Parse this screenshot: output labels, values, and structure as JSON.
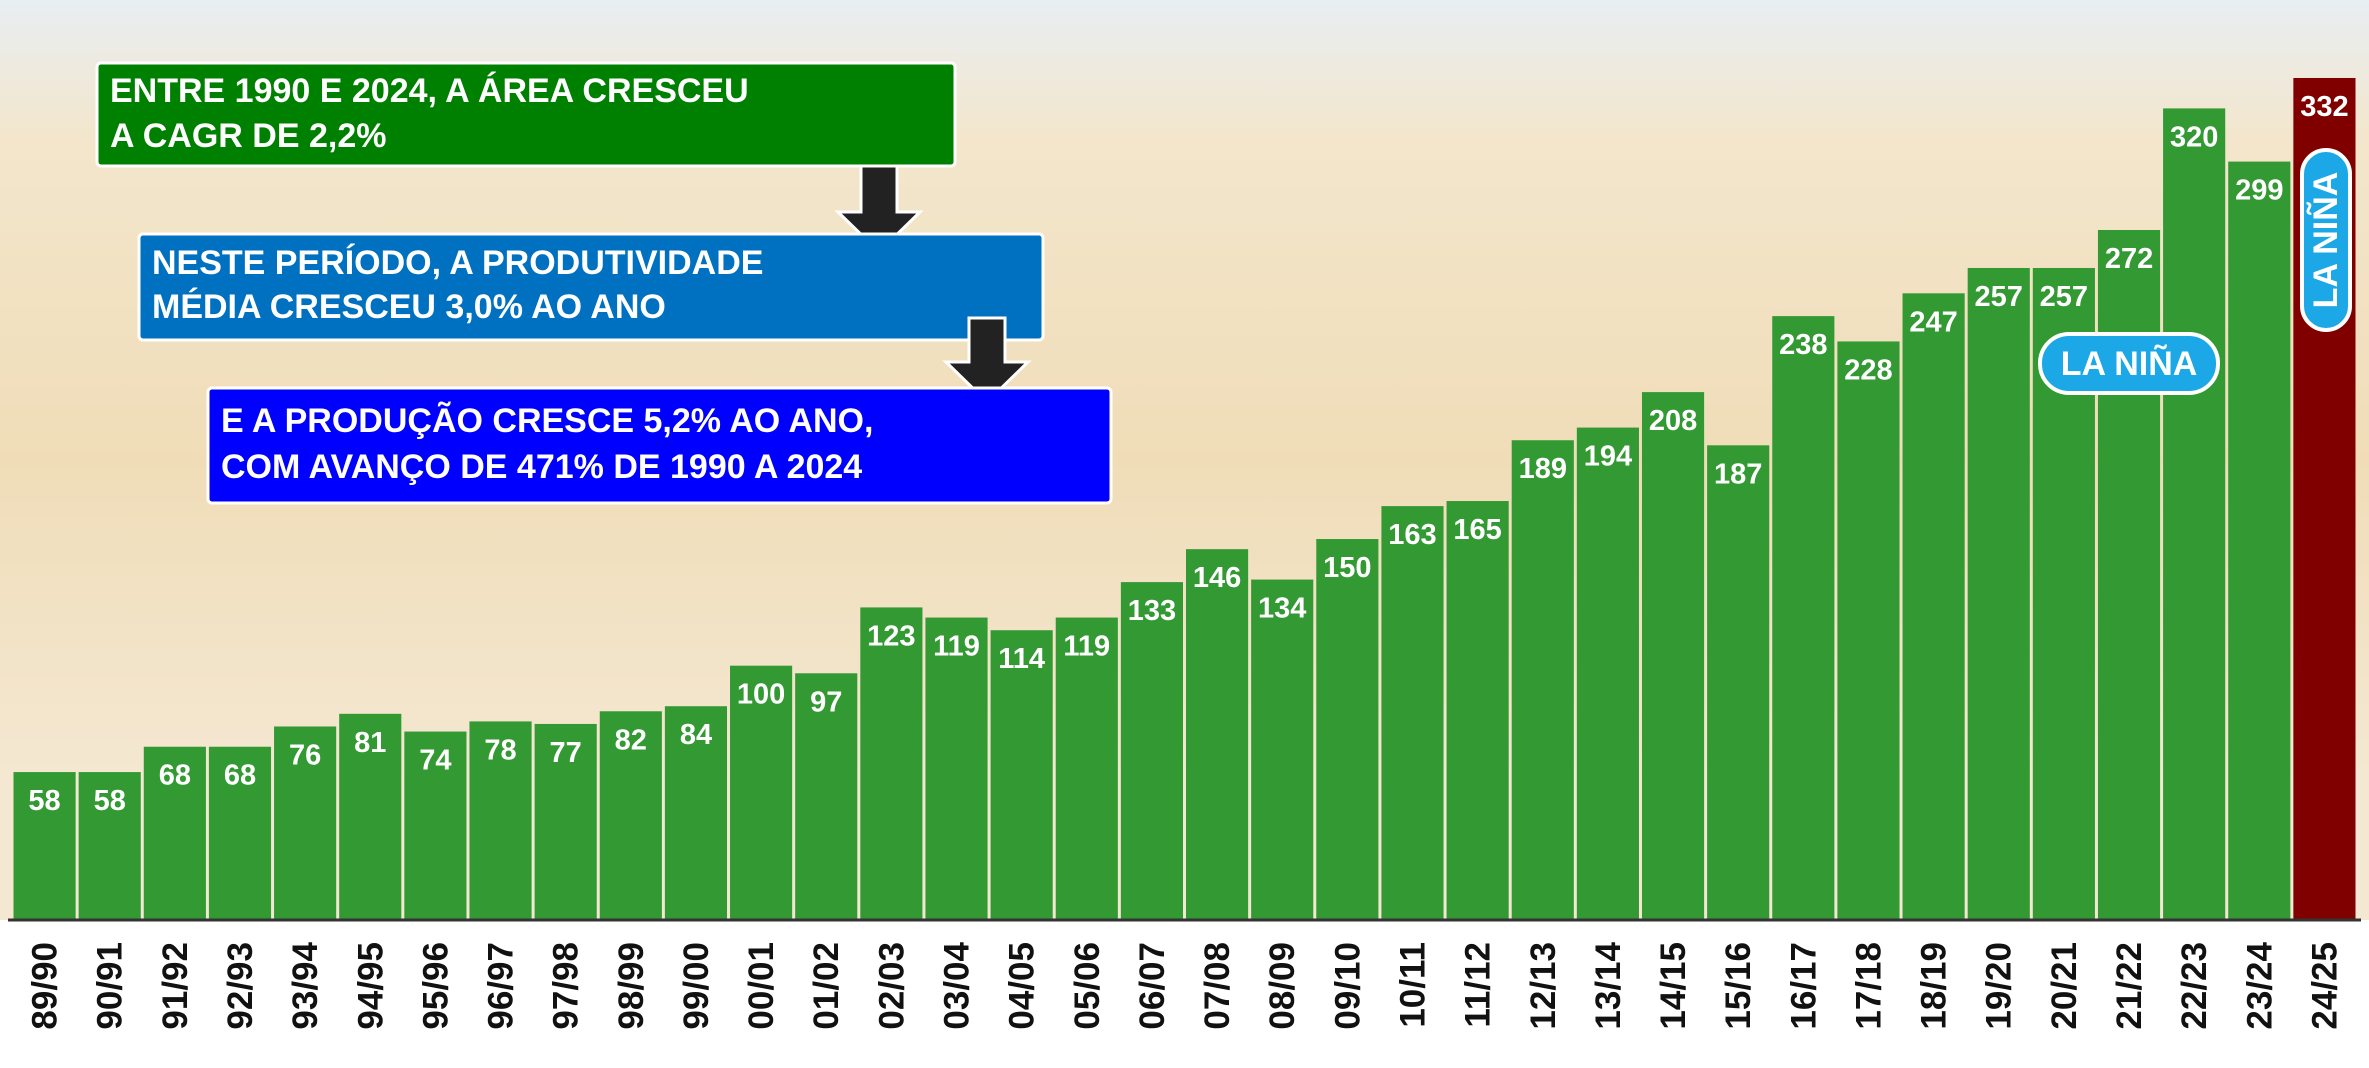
{
  "chart_data": {
    "type": "bar",
    "categories": [
      "89/90",
      "90/91",
      "91/92",
      "92/93",
      "93/94",
      "94/95",
      "95/96",
      "96/97",
      "97/98",
      "98/99",
      "99/00",
      "00/01",
      "01/02",
      "02/03",
      "03/04",
      "04/05",
      "05/06",
      "06/07",
      "07/08",
      "08/09",
      "09/10",
      "10/11",
      "11/12",
      "12/13",
      "13/14",
      "14/15",
      "15/16",
      "16/17",
      "17/18",
      "18/19",
      "19/20",
      "20/21",
      "21/22",
      "22/23",
      "23/24",
      "24/25"
    ],
    "values": [
      58,
      58,
      68,
      68,
      76,
      81,
      74,
      78,
      77,
      82,
      84,
      100,
      97,
      123,
      119,
      114,
      119,
      133,
      146,
      134,
      150,
      163,
      165,
      189,
      194,
      208,
      187,
      238,
      228,
      247,
      257,
      257,
      272,
      320,
      299,
      332
    ],
    "colors": [
      "#339933",
      "#339933",
      "#339933",
      "#339933",
      "#339933",
      "#339933",
      "#339933",
      "#339933",
      "#339933",
      "#339933",
      "#339933",
      "#339933",
      "#339933",
      "#339933",
      "#339933",
      "#339933",
      "#339933",
      "#339933",
      "#339933",
      "#339933",
      "#339933",
      "#339933",
      "#339933",
      "#339933",
      "#339933",
      "#339933",
      "#339933",
      "#339933",
      "#339933",
      "#339933",
      "#339933",
      "#339933",
      "#339933",
      "#339933",
      "#339933",
      "#800000"
    ],
    "annotations": [
      {
        "lines": [
          "ENTRE 1990 E 2024, A ÁREA CRESCEU",
          "A CAGR DE 2,2%"
        ]
      },
      {
        "lines": [
          "NESTE PERÍODO, A PRODUTIVIDADE",
          "MÉDIA CRESCEU 3,0% AO ANO"
        ]
      },
      {
        "lines": [
          "E A PRODUÇÃO CRESCE 5,2% AO ANO,",
          "COM AVANÇO DE 471% DE 1990 A 2024"
        ]
      },
      {
        "lines": [
          "LA NIÑA"
        ]
      },
      {
        "lines": [
          "LA NIÑA"
        ]
      }
    ]
  }
}
